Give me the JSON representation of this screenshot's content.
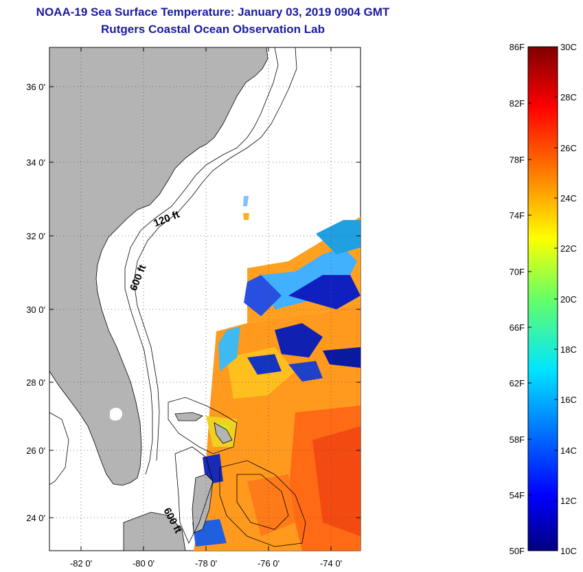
{
  "title": "NOAA-19 Sea Surface Temperature:  January 03, 2019 0904 GMT",
  "subtitle": "Rutgers Coastal Ocean Observation Lab",
  "map": {
    "lon_labels": [
      "-82 0'",
      "-80 0'",
      "-78 0'",
      "-76 0'",
      "-74 0'"
    ],
    "lat_labels": [
      "36 0'",
      "34 0'",
      "32 0'",
      "30 0'",
      "28 0'",
      "26 0'",
      "24 0'"
    ],
    "contour_labels": [
      "120 ft",
      "600 ft",
      "600 ft"
    ]
  },
  "colorbar": {
    "fahrenheit_labels": [
      "86F",
      "82F",
      "78F",
      "74F",
      "70F",
      "66F",
      "62F",
      "58F",
      "54F",
      "50F"
    ],
    "celsius_labels": [
      "30C",
      "28C",
      "26C",
      "24C",
      "22C",
      "20C",
      "18C",
      "16C",
      "14C",
      "12C",
      "10C"
    ]
  },
  "colors": {
    "title": "#1a1a9e",
    "land": "#b4b4b4",
    "ocean": "#ffffff"
  }
}
